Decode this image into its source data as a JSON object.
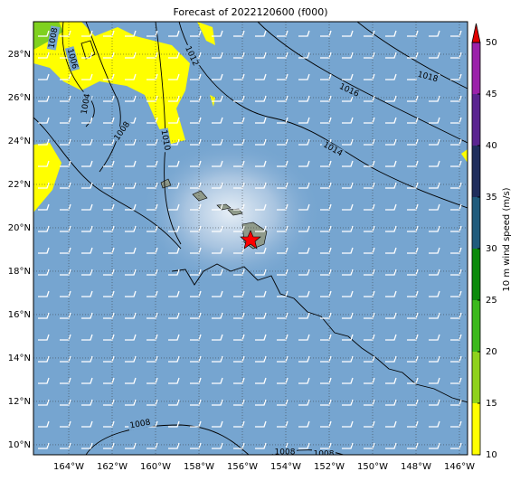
{
  "title": "Forecast of 2022120600 (f000)",
  "map": {
    "lonlim": [
      -165.625,
      -145.625
    ],
    "latlim": [
      9.54,
      29.5
    ],
    "lonticks": [
      {
        "value": -164,
        "label": "164°W"
      },
      {
        "value": -162,
        "label": "162°W"
      },
      {
        "value": -160,
        "label": "160°W"
      },
      {
        "value": -158,
        "label": "158°W"
      },
      {
        "value": -156,
        "label": "156°W"
      },
      {
        "value": -154,
        "label": "154°W"
      },
      {
        "value": -152,
        "label": "152°W"
      },
      {
        "value": -150,
        "label": "150°W"
      },
      {
        "value": -148,
        "label": "148°W"
      },
      {
        "value": -146,
        "label": "146°W"
      }
    ],
    "latticks": [
      {
        "value": 10,
        "label": "10°N"
      },
      {
        "value": 12,
        "label": "12°N"
      },
      {
        "value": 14,
        "label": "14°N"
      },
      {
        "value": 16,
        "label": "16°N"
      },
      {
        "value": 18,
        "label": "18°N"
      },
      {
        "value": 20,
        "label": "20°N"
      },
      {
        "value": 22,
        "label": "22°N"
      },
      {
        "value": 24,
        "label": "24°N"
      },
      {
        "value": 26,
        "label": "26°N"
      },
      {
        "value": 28,
        "label": "28°N"
      }
    ],
    "contour_labels": [
      "1008",
      "1006",
      "1004",
      "1012",
      "1016",
      "1018",
      "1008",
      "1010",
      "1014",
      "1008",
      "1008",
      "1008"
    ]
  },
  "colorbar": {
    "label": "10 m wind speed (m/s)",
    "lim": [
      10,
      50
    ],
    "ticks": [
      10,
      15,
      20,
      25,
      30,
      35,
      40,
      45,
      50
    ],
    "colors": [
      "#ffff00",
      "#8fd21c",
      "#3cb91c",
      "#0b8a0b",
      "#1f5b7c",
      "#1f2d5c",
      "#5a2490",
      "#9b22aa"
    ],
    "extend_color": "#e00000"
  }
}
